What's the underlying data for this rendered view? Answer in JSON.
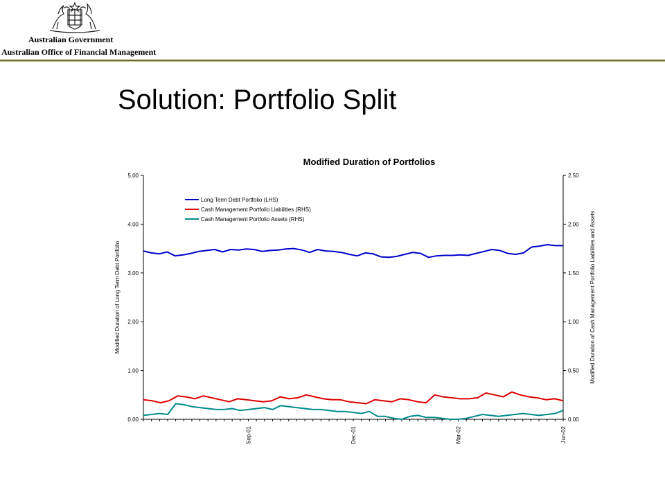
{
  "header": {
    "government": "Australian Government",
    "office": "Australian Office of Financial Management",
    "crest_icon": "coat-of-arms-icon",
    "rule_color": "#6b6b2a"
  },
  "slide": {
    "title": "Solution: Portfolio Split"
  },
  "chart_data": {
    "type": "line",
    "title": "Modified Duration of Portfolios",
    "ylabel_left": "Modified Duration of Long Term Debt Portfolio",
    "ylabel_right": "Modified Duration of Cash Management Portfolio Liabilities and Assets",
    "ylim_left": [
      0,
      5
    ],
    "ylim_right": [
      0,
      2.5
    ],
    "yticks_left": [
      "0.00",
      "1.00",
      "2.00",
      "3.00",
      "4.00",
      "5.00"
    ],
    "yticks_right": [
      "0.00",
      "0.50",
      "1.00",
      "1.50",
      "2.00",
      "2.50"
    ],
    "xlabels": [
      "Sep-01",
      "Dec-01",
      "Mar-02",
      "Jun-02"
    ],
    "xlabel_positions": [
      13,
      26,
      39,
      52
    ],
    "grid": false,
    "legend_position": "top-left",
    "series": [
      {
        "name": "Long Term Debt Portfolio (LHS)",
        "axis": "left",
        "color": "#0000cc",
        "values": [
          3.45,
          3.41,
          3.39,
          3.43,
          3.35,
          3.37,
          3.4,
          3.44,
          3.46,
          3.48,
          3.43,
          3.48,
          3.47,
          3.49,
          3.48,
          3.44,
          3.46,
          3.47,
          3.49,
          3.5,
          3.47,
          3.42,
          3.48,
          3.45,
          3.44,
          3.42,
          3.38,
          3.35,
          3.41,
          3.39,
          3.33,
          3.32,
          3.34,
          3.38,
          3.42,
          3.4,
          3.32,
          3.35,
          3.36,
          3.36,
          3.37,
          3.36,
          3.4,
          3.44,
          3.48,
          3.46,
          3.4,
          3.38,
          3.41,
          3.53,
          3.55,
          3.58,
          3.56,
          3.56
        ]
      },
      {
        "name": "Cash Management Portfolio Liabilities (RHS)",
        "axis": "right",
        "color": "#dd0000",
        "values": [
          0.2,
          0.19,
          0.17,
          0.19,
          0.24,
          0.23,
          0.21,
          0.24,
          0.22,
          0.2,
          0.18,
          0.21,
          0.2,
          0.19,
          0.18,
          0.19,
          0.23,
          0.21,
          0.22,
          0.25,
          0.23,
          0.21,
          0.2,
          0.2,
          0.18,
          0.17,
          0.16,
          0.2,
          0.19,
          0.18,
          0.21,
          0.2,
          0.18,
          0.17,
          0.25,
          0.23,
          0.22,
          0.21,
          0.21,
          0.22,
          0.27,
          0.25,
          0.23,
          0.28,
          0.25,
          0.23,
          0.22,
          0.2,
          0.21,
          0.19
        ]
      },
      {
        "name": "Cash Management Portfolio Assets (RHS)",
        "axis": "right",
        "color": "#008b8b",
        "values": [
          0.04,
          0.05,
          0.06,
          0.05,
          0.16,
          0.15,
          0.13,
          0.12,
          0.11,
          0.1,
          0.1,
          0.11,
          0.09,
          0.1,
          0.11,
          0.12,
          0.1,
          0.14,
          0.13,
          0.12,
          0.11,
          0.1,
          0.1,
          0.09,
          0.08,
          0.08,
          0.07,
          0.06,
          0.08,
          0.03,
          0.03,
          0.01,
          0.0,
          0.03,
          0.04,
          0.02,
          0.02,
          0.01,
          0.0,
          0.0,
          0.01,
          0.03,
          0.05,
          0.04,
          0.03,
          0.04,
          0.05,
          0.06,
          0.05,
          0.04,
          0.05,
          0.06,
          0.09
        ]
      }
    ]
  }
}
